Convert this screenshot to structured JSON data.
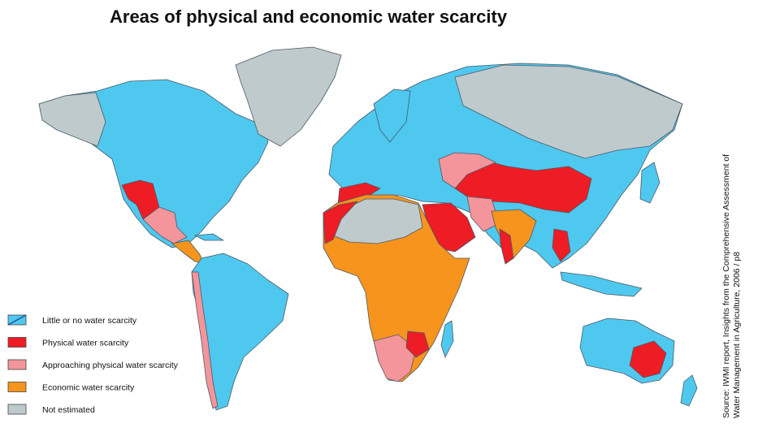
{
  "title": "Areas of physical and economic water scarcity",
  "legend": [
    {
      "label": "Little or no water scarcity",
      "color": "#4fc8ef"
    },
    {
      "label": "Physical water scarcity",
      "color": "#ee1c24"
    },
    {
      "label": "Approaching physical water scarcity",
      "color": "#f4959b"
    },
    {
      "label": "Economic water scarcity",
      "color": "#f7941d"
    },
    {
      "label": "Not estimated",
      "color": "#bfcacd"
    }
  ],
  "source": [
    "Source: IWMI report, Insights from the Comprehensive Assessment of",
    "Water Management in Agriculture, 2006 / p8"
  ]
}
